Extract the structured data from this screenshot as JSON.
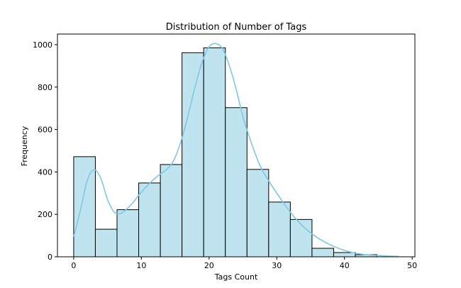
{
  "chart_data": {
    "type": "bar",
    "subtype": "histogram",
    "title": "Distribution of Number of Tags",
    "xlabel": "Tags Count",
    "ylabel": "Frequency",
    "xlim": [
      -2.4,
      50.4
    ],
    "ylim": [
      0,
      1050
    ],
    "xticks": [
      0,
      10,
      20,
      30,
      40,
      50
    ],
    "yticks": [
      0,
      200,
      400,
      600,
      800,
      1000
    ],
    "grid": false,
    "legend": "none",
    "bin_edges": [
      0,
      3.2,
      6.4,
      9.6,
      12.8,
      16.0,
      19.2,
      22.4,
      25.6,
      28.8,
      32.0,
      35.2,
      38.4,
      41.6,
      44.8,
      48.0
    ],
    "values": [
      472,
      130,
      222,
      348,
      435,
      962,
      985,
      703,
      412,
      258,
      176,
      40,
      20,
      10,
      0
    ],
    "bar_fill": "#bfe3ef",
    "bar_edge": "#000000",
    "kde": {
      "color": "#7ec8e3",
      "x": [
        0,
        1,
        2,
        3,
        4,
        5,
        6,
        7,
        8,
        9,
        10,
        12,
        14,
        15,
        16,
        17,
        18,
        19,
        20,
        21,
        22,
        23,
        24,
        25,
        26,
        27,
        28,
        30,
        32,
        34,
        36,
        38,
        40,
        42,
        44,
        46,
        48
      ],
      "y": [
        95,
        220,
        360,
        410,
        370,
        270,
        210,
        205,
        230,
        265,
        305,
        370,
        420,
        470,
        560,
        680,
        810,
        920,
        990,
        1005,
        980,
        900,
        790,
        660,
        560,
        470,
        400,
        300,
        210,
        140,
        90,
        55,
        30,
        15,
        8,
        4,
        2
      ]
    }
  }
}
